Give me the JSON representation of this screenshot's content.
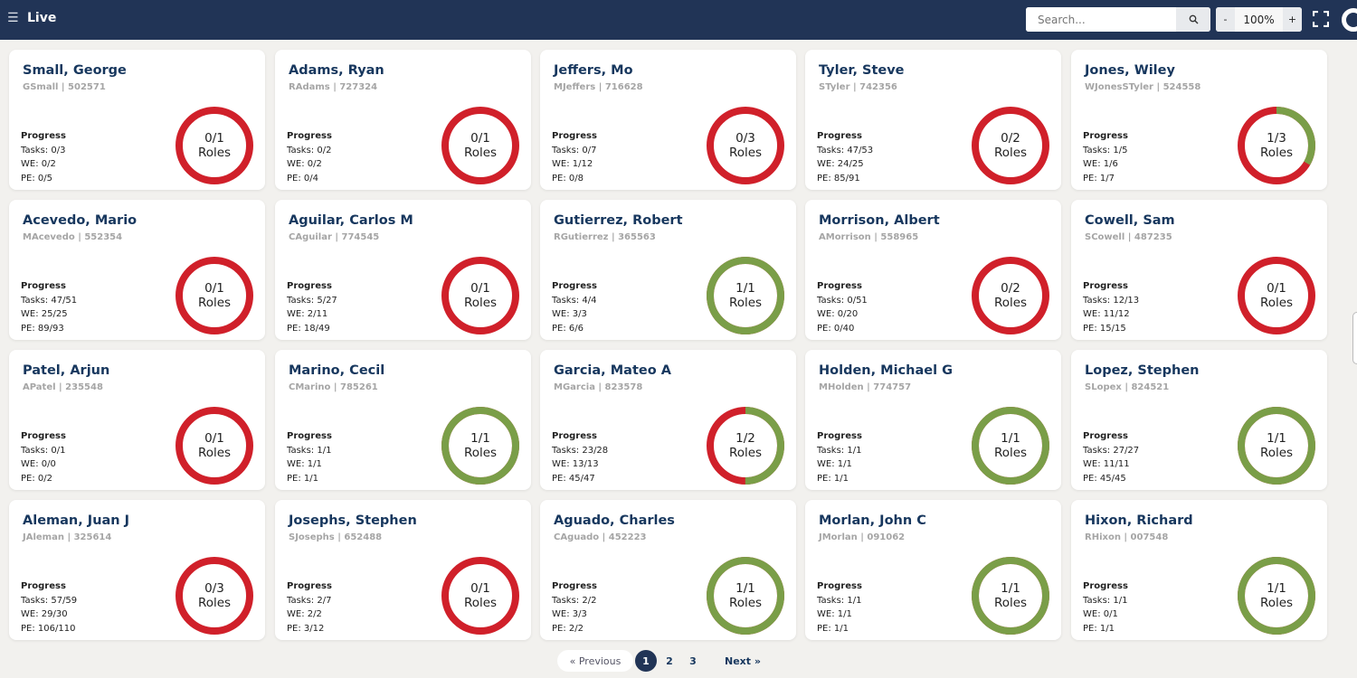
{
  "header": {
    "title": "Live",
    "search_placeholder": "Search...",
    "zoom_minus": "-",
    "zoom_value": "100%",
    "zoom_plus": "+",
    "menu_icon": "☰",
    "search_icon": "⚲"
  },
  "colors": {
    "complete": "#7a9e48",
    "incomplete": "#d0202a",
    "header": "#213456",
    "name": "#17375e"
  },
  "labels": {
    "progress": "Progress",
    "roles": "Roles"
  },
  "cards": [
    {
      "name": "Small, George",
      "sub": "GSmall | 502571",
      "tasks": "Tasks: 0/3",
      "we": "WE: 0/2",
      "pe": "PE: 0/5",
      "roles": "0/1",
      "done": 0,
      "total": 1
    },
    {
      "name": "Adams, Ryan",
      "sub": "RAdams | 727324",
      "tasks": "Tasks: 0/2",
      "we": "WE: 0/2",
      "pe": "PE: 0/4",
      "roles": "0/1",
      "done": 0,
      "total": 1
    },
    {
      "name": "Jeffers, Mo",
      "sub": "MJeffers | 716628",
      "tasks": "Tasks: 0/7",
      "we": "WE: 1/12",
      "pe": "PE: 0/8",
      "roles": "0/3",
      "done": 0,
      "total": 3
    },
    {
      "name": "Tyler, Steve",
      "sub": "STyler | 742356",
      "tasks": "Tasks: 47/53",
      "we": "WE: 24/25",
      "pe": "PE: 85/91",
      "roles": "0/2",
      "done": 0,
      "total": 2
    },
    {
      "name": "Jones, Wiley",
      "sub": "WJonesSTyler | 524558",
      "tasks": "Tasks: 1/5",
      "we": "WE: 1/6",
      "pe": "PE: 1/7",
      "roles": "1/3",
      "done": 1,
      "total": 3
    },
    {
      "name": "Acevedo, Mario",
      "sub": "MAcevedo | 552354",
      "tasks": "Tasks: 47/51",
      "we": "WE: 25/25",
      "pe": "PE: 89/93",
      "roles": "0/1",
      "done": 0,
      "total": 1
    },
    {
      "name": "Aguilar, Carlos M",
      "sub": "CAguilar | 774545",
      "tasks": "Tasks: 5/27",
      "we": "WE: 2/11",
      "pe": "PE: 18/49",
      "roles": "0/1",
      "done": 0,
      "total": 1
    },
    {
      "name": "Gutierrez, Robert",
      "sub": "RGutierrez | 365563",
      "tasks": "Tasks: 4/4",
      "we": "WE: 3/3",
      "pe": "PE: 6/6",
      "roles": "1/1",
      "done": 1,
      "total": 1
    },
    {
      "name": "Morrison, Albert",
      "sub": "AMorrison | 558965",
      "tasks": "Tasks: 0/51",
      "we": "WE: 0/20",
      "pe": "PE: 0/40",
      "roles": "0/2",
      "done": 0,
      "total": 2
    },
    {
      "name": "Cowell, Sam",
      "sub": "SCowell | 487235",
      "tasks": "Tasks: 12/13",
      "we": "WE: 11/12",
      "pe": "PE: 15/15",
      "roles": "0/1",
      "done": 0,
      "total": 1
    },
    {
      "name": "Patel, Arjun",
      "sub": "APatel | 235548",
      "tasks": "Tasks: 0/1",
      "we": "WE: 0/0",
      "pe": "PE: 0/2",
      "roles": "0/1",
      "done": 0,
      "total": 1
    },
    {
      "name": "Marino, Cecil",
      "sub": "CMarino | 785261",
      "tasks": "Tasks: 1/1",
      "we": "WE: 1/1",
      "pe": "PE: 1/1",
      "roles": "1/1",
      "done": 1,
      "total": 1
    },
    {
      "name": "Garcia, Mateo A",
      "sub": "MGarcia | 823578",
      "tasks": "Tasks: 23/28",
      "we": "WE: 13/13",
      "pe": "PE: 45/47",
      "roles": "1/2",
      "done": 1,
      "total": 2
    },
    {
      "name": "Holden, Michael G",
      "sub": "MHolden | 774757",
      "tasks": "Tasks: 1/1",
      "we": "WE: 1/1",
      "pe": "PE: 1/1",
      "roles": "1/1",
      "done": 1,
      "total": 1
    },
    {
      "name": "Lopez, Stephen",
      "sub": "SLopex | 824521",
      "tasks": "Tasks: 27/27",
      "we": "WE: 11/11",
      "pe": "PE: 45/45",
      "roles": "1/1",
      "done": 1,
      "total": 1
    },
    {
      "name": "Aleman, Juan J",
      "sub": "JAleman | 325614",
      "tasks": "Tasks: 57/59",
      "we": "WE: 29/30",
      "pe": "PE: 106/110",
      "roles": "0/3",
      "done": 0,
      "total": 3
    },
    {
      "name": "Josephs, Stephen",
      "sub": "SJosephs | 652488",
      "tasks": "Tasks: 2/7",
      "we": "WE: 2/2",
      "pe": "PE: 3/12",
      "roles": "0/1",
      "done": 0,
      "total": 1
    },
    {
      "name": "Aguado, Charles",
      "sub": "CAguado | 452223",
      "tasks": "Tasks: 2/2",
      "we": "WE: 3/3",
      "pe": "PE: 2/2",
      "roles": "1/1",
      "done": 1,
      "total": 1
    },
    {
      "name": "Morlan, John C",
      "sub": "JMorlan | 091062",
      "tasks": "Tasks: 1/1",
      "we": "WE: 1/1",
      "pe": "PE: 1/1",
      "roles": "1/1",
      "done": 1,
      "total": 1
    },
    {
      "name": "Hixon, Richard",
      "sub": "RHixon | 007548",
      "tasks": "Tasks: 1/1",
      "we": "WE: 0/1",
      "pe": "PE: 1/1",
      "roles": "1/1",
      "done": 1,
      "total": 1
    }
  ],
  "pagination": {
    "previous": "« Previous",
    "pages": [
      "1",
      "2",
      "3"
    ],
    "current": "1",
    "next": "Next »"
  }
}
